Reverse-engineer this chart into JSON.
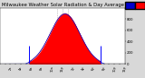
{
  "title": "Milwaukee Weather Solar Radiation & Day Average per Minute (Today)",
  "bg_color": "#d8d8d8",
  "plot_bg_color": "#ffffff",
  "fill_color": "#ff0000",
  "line_color": "#dd0000",
  "avg_line_color": "#0000cc",
  "sunrise_line_color": "#0000ff",
  "legend_solar_color": "#ff0000",
  "legend_avg_color": "#0000cc",
  "num_points": 1440,
  "peak_minute": 750,
  "peak_value": 900,
  "sigma": 170,
  "sunrise_minute": 335,
  "sunset_minute": 1165,
  "dashed_lines": [
    660,
    720,
    780
  ],
  "ylim": [
    0,
    1000
  ],
  "xlim": [
    0,
    1440
  ],
  "title_fontsize": 3.8,
  "tick_fontsize": 2.5,
  "ylabel_fontsize": 2.8
}
